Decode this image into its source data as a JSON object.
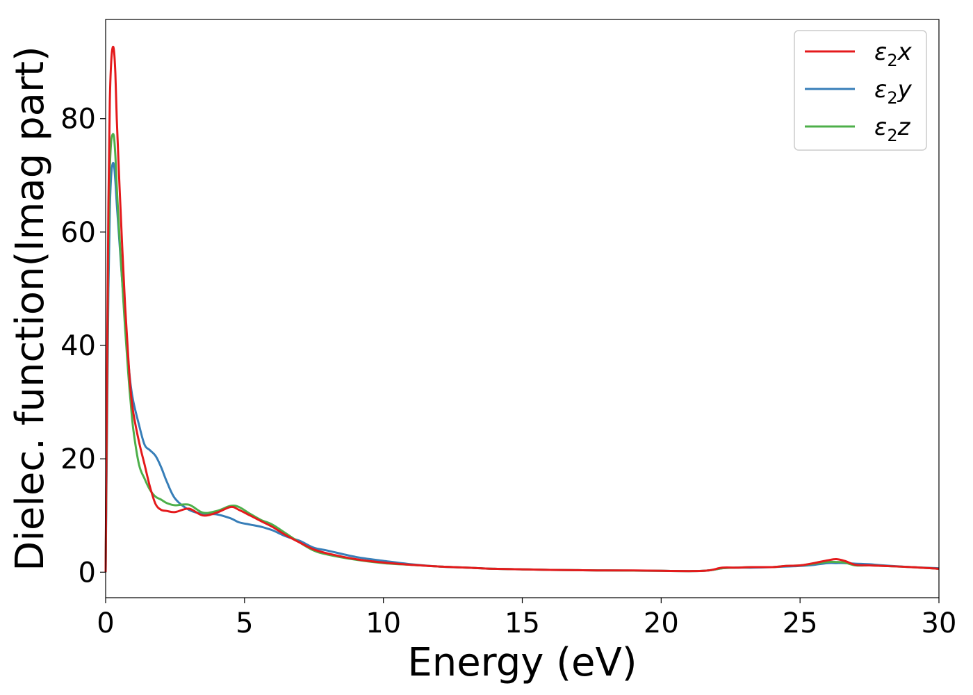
{
  "chart_data": {
    "type": "line",
    "xlabel": "Energy (eV)",
    "ylabel": "Dielec. function(Imag part)",
    "xlim": [
      0,
      30
    ],
    "ylim": [
      -4.5,
      97.5
    ],
    "xticks": [
      0,
      5,
      10,
      15,
      20,
      25,
      30
    ],
    "yticks": [
      0,
      20,
      40,
      60,
      80
    ],
    "grid": false,
    "legend_position": "top-right",
    "series": [
      {
        "name": "ε2x",
        "legend": {
          "base": "ε",
          "sub": "2",
          "axis": "x"
        },
        "color": "#e41a1c",
        "x": [
          0,
          0.05,
          0.1,
          0.15,
          0.2,
          0.25,
          0.3,
          0.35,
          0.4,
          0.5,
          0.6,
          0.7,
          0.8,
          0.9,
          1.0,
          1.2,
          1.4,
          1.6,
          1.8,
          2.0,
          2.2,
          2.5,
          3.0,
          3.5,
          4.0,
          4.5,
          4.8,
          5.2,
          5.6,
          6.0,
          6.5,
          7.0,
          7.5,
          8.0,
          9.0,
          10.0,
          11.0,
          12.0,
          13.0,
          14.0,
          15.0,
          16.0,
          17.0,
          18.0,
          19.0,
          20.0,
          21.0,
          21.7,
          22.2,
          22.7,
          23.3,
          24.0,
          24.5,
          25.0,
          25.5,
          26.0,
          26.3,
          26.6,
          27.0,
          27.5,
          28.0,
          29.0,
          30.0
        ],
        "y": [
          0,
          35,
          65,
          83,
          90,
          92.5,
          92,
          88,
          80,
          68,
          57,
          47,
          39,
          32,
          28,
          23,
          19,
          15,
          12,
          11,
          10.8,
          10.6,
          11.2,
          10,
          10.5,
          11.5,
          11,
          10,
          9,
          8,
          6.5,
          5.2,
          4,
          3.3,
          2.3,
          1.7,
          1.3,
          1,
          0.8,
          0.6,
          0.5,
          0.4,
          0.35,
          0.3,
          0.3,
          0.25,
          0.2,
          0.3,
          0.8,
          0.8,
          0.9,
          0.9,
          1.1,
          1.2,
          1.6,
          2.1,
          2.3,
          2.0,
          1.3,
          1.2,
          1.1,
          0.9,
          0.6
        ]
      },
      {
        "name": "ε2y",
        "legend": {
          "base": "ε",
          "sub": "2",
          "axis": "y"
        },
        "color": "#377eb8",
        "x": [
          0,
          0.05,
          0.1,
          0.15,
          0.2,
          0.25,
          0.3,
          0.35,
          0.4,
          0.5,
          0.6,
          0.7,
          0.8,
          0.9,
          1.0,
          1.2,
          1.4,
          1.6,
          1.8,
          2.0,
          2.2,
          2.5,
          3.0,
          3.5,
          4.0,
          4.5,
          4.8,
          5.2,
          5.6,
          6.0,
          6.5,
          7.0,
          7.5,
          8.0,
          9.0,
          10.0,
          11.0,
          12.0,
          13.0,
          14.0,
          15.0,
          16.0,
          17.0,
          18.0,
          19.0,
          20.0,
          21.0,
          21.7,
          22.2,
          22.7,
          23.3,
          24.0,
          24.5,
          25.0,
          25.5,
          26.0,
          26.3,
          26.6,
          27.0,
          27.5,
          28.0,
          29.0,
          30.0
        ],
        "y": [
          0,
          25,
          50,
          64,
          70,
          72,
          71.8,
          69,
          65,
          58,
          51,
          44,
          38,
          33,
          30,
          26,
          22.5,
          21.5,
          20.5,
          18.5,
          16,
          13,
          11,
          10.3,
          10.2,
          9.5,
          8.8,
          8.4,
          8,
          7.4,
          6.3,
          5.5,
          4.3,
          3.8,
          2.7,
          2.0,
          1.4,
          1.0,
          0.8,
          0.6,
          0.5,
          0.4,
          0.35,
          0.3,
          0.28,
          0.25,
          0.2,
          0.3,
          0.7,
          0.8,
          0.8,
          0.9,
          1.0,
          1.1,
          1.3,
          1.6,
          1.6,
          1.6,
          1.5,
          1.4,
          1.2,
          0.9,
          0.7
        ]
      },
      {
        "name": "ε2z",
        "legend": {
          "base": "ε",
          "sub": "2",
          "axis": "z"
        },
        "color": "#4daf4a",
        "x": [
          0,
          0.05,
          0.1,
          0.15,
          0.2,
          0.25,
          0.3,
          0.35,
          0.4,
          0.5,
          0.6,
          0.7,
          0.8,
          0.9,
          1.0,
          1.2,
          1.4,
          1.6,
          1.8,
          2.0,
          2.2,
          2.5,
          3.0,
          3.5,
          4.0,
          4.5,
          4.8,
          5.2,
          5.6,
          6.0,
          6.5,
          7.0,
          7.5,
          8.0,
          9.0,
          10.0,
          11.0,
          12.0,
          13.0,
          14.0,
          15.0,
          16.0,
          17.0,
          18.0,
          19.0,
          20.0,
          21.0,
          21.7,
          22.2,
          22.7,
          23.3,
          24.0,
          24.5,
          25.0,
          25.5,
          26.0,
          26.3,
          26.6,
          27.0,
          27.5,
          28.0,
          29.0,
          30.0
        ],
        "y": [
          0,
          30,
          57,
          71,
          76,
          77.2,
          76.8,
          73.5,
          68,
          59,
          51,
          43,
          36,
          30,
          25,
          19,
          16.5,
          14.5,
          13.3,
          12.8,
          12.2,
          11.8,
          11.9,
          10.5,
          10.8,
          11.7,
          11.5,
          10.3,
          9.2,
          8.4,
          6.8,
          5.2,
          3.8,
          3.1,
          2.2,
          1.6,
          1.3,
          1.0,
          0.8,
          0.6,
          0.5,
          0.4,
          0.35,
          0.3,
          0.28,
          0.25,
          0.2,
          0.3,
          0.7,
          0.8,
          0.9,
          0.9,
          1.1,
          1.2,
          1.5,
          1.8,
          1.8,
          1.7,
          1.2,
          1.2,
          1.1,
          0.9,
          0.6
        ]
      }
    ]
  }
}
